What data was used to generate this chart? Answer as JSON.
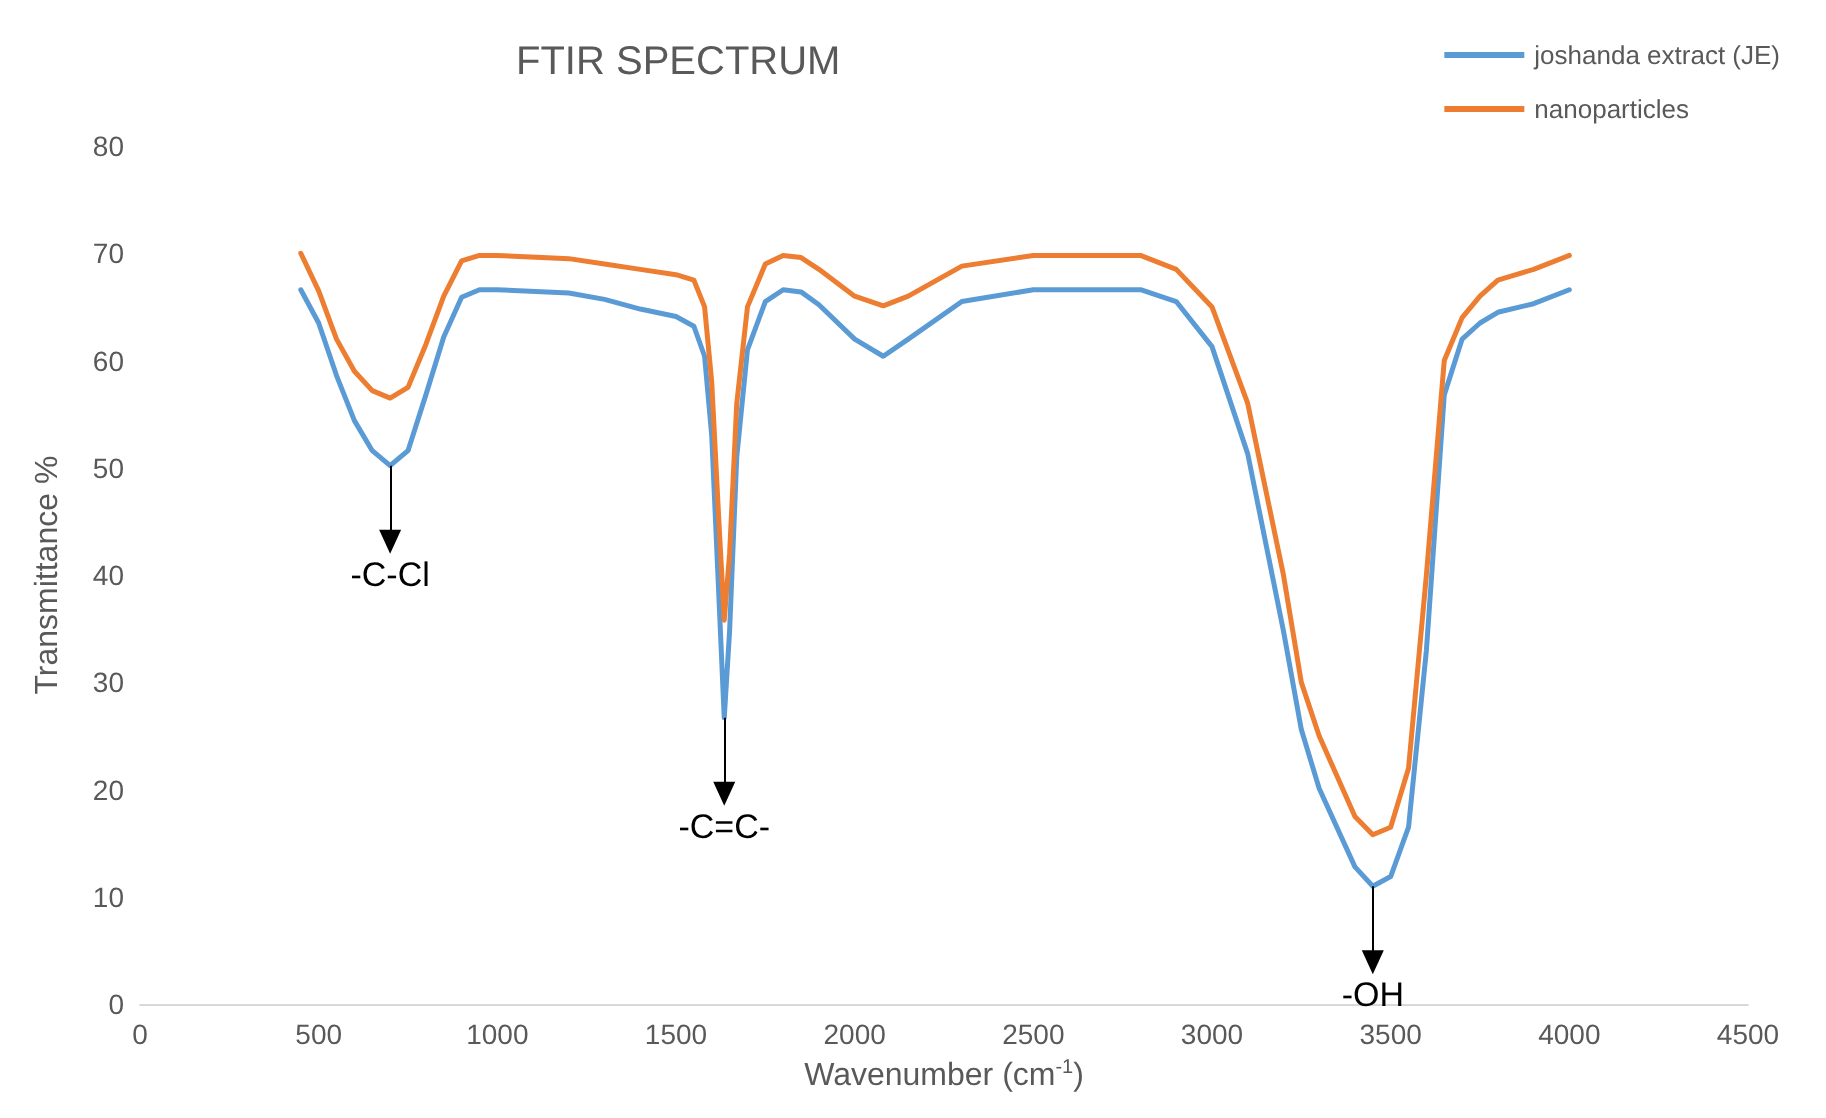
{
  "chart_data": {
    "type": "line",
    "title": "FTIR SPECTRUM",
    "xlabel": "Wavenumber (cm$^{-1}$)",
    "ylabel": "Transmittance %",
    "xlim": [
      0,
      4500
    ],
    "xticks": [
      0,
      500,
      1000,
      1500,
      2000,
      2500,
      3000,
      3500,
      4000,
      4500
    ],
    "ylim": [
      0,
      80
    ],
    "yticks": [
      0,
      10,
      20,
      30,
      40,
      50,
      60,
      70,
      80
    ],
    "grid": false,
    "legend": "top right",
    "marker": "none",
    "line_style": "solid",
    "annotations": [
      {
        "text": "-C-Cl",
        "x": 700,
        "y": 50.2
      },
      {
        "text": "-C=C-",
        "x": 1635,
        "y": 26.7
      },
      {
        "text": "-OH",
        "x": 3450,
        "y": 11
      }
    ],
    "series": [
      {
        "name": "joshanda extract (JE)",
        "color": "#5b9bd5",
        "x": [
          450,
          500,
          550,
          600,
          650,
          700,
          750,
          800,
          850,
          900,
          950,
          1000,
          1200,
          1300,
          1400,
          1500,
          1550,
          1580,
          1600,
          1620,
          1635,
          1650,
          1670,
          1700,
          1750,
          1800,
          1850,
          1900,
          2000,
          2080,
          2150,
          2300,
          2500,
          2800,
          2900,
          3000,
          3100,
          3200,
          3250,
          3300,
          3400,
          3450,
          3500,
          3550,
          3600,
          3650,
          3700,
          3750,
          3800,
          3900,
          4000
        ],
        "values": [
          66.6,
          63.5,
          58.6,
          54.4,
          51.6,
          50.2,
          51.6,
          56.8,
          62.2,
          65.9,
          66.6,
          66.6,
          66.3,
          65.7,
          64.8,
          64.1,
          63.2,
          60.4,
          53,
          38,
          26.7,
          34.8,
          51,
          61,
          65.5,
          66.6,
          66.4,
          65.2,
          62,
          60.4,
          62,
          65.5,
          66.6,
          66.6,
          65.5,
          61.3,
          51.3,
          34.8,
          25.6,
          20.1,
          12.8,
          11,
          11.9,
          16.5,
          33,
          56.8,
          62,
          63.5,
          64.5,
          65.3,
          66.6
        ]
      },
      {
        "name": "nanoparticles",
        "color": "#ed7d31",
        "x": [
          450,
          500,
          550,
          600,
          650,
          700,
          750,
          800,
          850,
          900,
          950,
          1000,
          1200,
          1300,
          1400,
          1500,
          1550,
          1580,
          1600,
          1620,
          1635,
          1650,
          1670,
          1700,
          1750,
          1800,
          1850,
          1900,
          2000,
          2080,
          2150,
          2300,
          2500,
          2800,
          2900,
          3000,
          3100,
          3200,
          3250,
          3300,
          3400,
          3450,
          3500,
          3550,
          3600,
          3650,
          3700,
          3750,
          3800,
          3900,
          4000
        ],
        "values": [
          70,
          66.5,
          62,
          59,
          57.2,
          56.5,
          57.5,
          61.5,
          66,
          69.3,
          69.8,
          69.8,
          69.5,
          69,
          68.5,
          68,
          67.5,
          65,
          58,
          45,
          35.8,
          42,
          56,
          65,
          69,
          69.8,
          69.6,
          68.5,
          66,
          65.1,
          66,
          68.8,
          69.8,
          69.8,
          68.5,
          65,
          56,
          40,
          30,
          25,
          17.5,
          15.8,
          16.5,
          22,
          40,
          60,
          64,
          66,
          67.5,
          68.5,
          69.8
        ]
      }
    ]
  }
}
